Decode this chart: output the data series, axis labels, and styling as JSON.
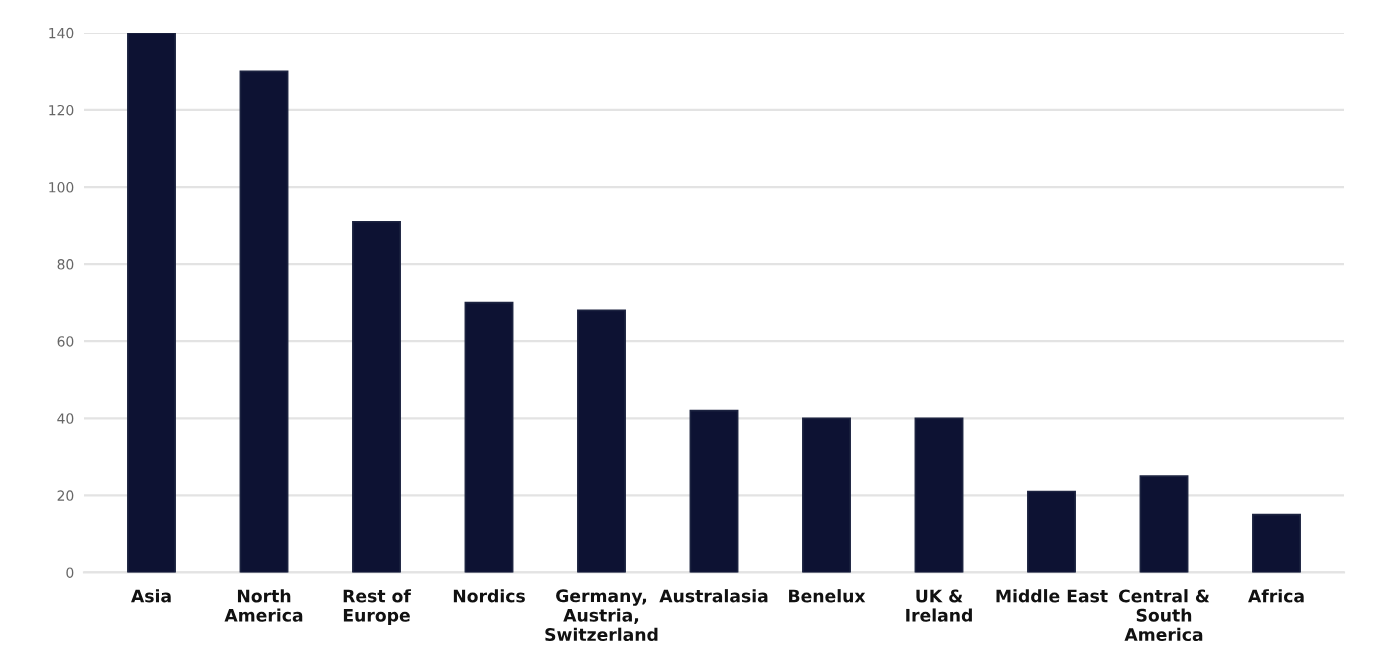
{
  "chart_data": {
    "type": "bar",
    "categories": [
      "Asia",
      "North\nAmerica",
      "Rest of\nEurope",
      "Nordics",
      "Germany,\nAustria,\nSwitzerland",
      "Australasia",
      "Benelux",
      "UK &\nIreland",
      "Middle East",
      "Central &\nSouth\nAmerica",
      "Africa"
    ],
    "values": [
      140,
      130,
      91,
      70,
      68,
      42,
      40,
      40,
      21,
      25,
      15
    ],
    "color": "#0d1233",
    "ylim": [
      0,
      140
    ],
    "yticks": [
      0,
      20,
      40,
      60,
      80,
      100,
      120,
      140
    ],
    "grid": "y"
  }
}
